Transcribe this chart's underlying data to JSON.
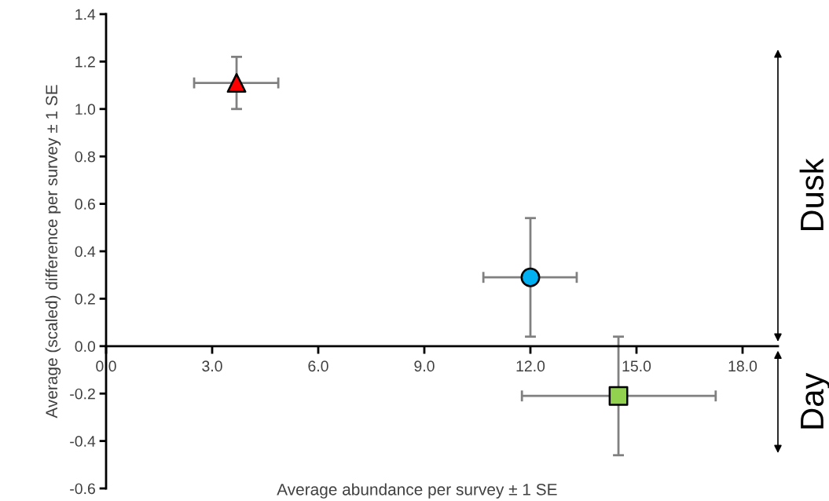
{
  "chart_data": {
    "type": "scatter",
    "xlabel": "Average abundance per survey ± 1 SE",
    "ylabel": "Average (scaled) difference per survey ± 1 SE",
    "series": [
      {
        "x": [
          3.69
        ],
        "values": [
          1.11
        ],
        "color": "#ff0000",
        "marker": "triangle",
        "errors": [
          [
            1.0,
            1.22
          ]
        ],
        "xerrors": [
          [
            2.49,
            4.87
          ]
        ]
      },
      {
        "x": [
          12.0
        ],
        "values": [
          0.29
        ],
        "color": "#00b0f0",
        "marker": "circle",
        "errors": [
          [
            0.04,
            0.54
          ]
        ],
        "xerrors": [
          [
            10.67,
            13.31
          ]
        ]
      },
      {
        "x": [
          14.49
        ],
        "values": [
          -0.21
        ],
        "color": "#92d050",
        "marker": "square",
        "errors": [
          [
            -0.46,
            0.04
          ]
        ],
        "xerrors": [
          [
            11.76,
            17.24
          ]
        ]
      }
    ],
    "xlim": [
      0,
      19.0
    ],
    "ylim": [
      -0.6,
      1.4
    ],
    "xticks": [
      {
        "value": 0,
        "label": "0.0"
      },
      {
        "value": 3,
        "label": "3.0"
      },
      {
        "value": 6,
        "label": "6.0"
      },
      {
        "value": 9,
        "label": "9.0"
      },
      {
        "value": 12,
        "label": "12.0"
      },
      {
        "value": 15,
        "label": "15.0"
      },
      {
        "value": 18,
        "label": "18.0"
      }
    ],
    "yticks": [
      {
        "value": -0.6,
        "label": "-0.6"
      },
      {
        "value": -0.4,
        "label": "-0.4"
      },
      {
        "value": -0.2,
        "label": "-0.2"
      },
      {
        "value": 0,
        "label": "0.0"
      },
      {
        "value": 0.2,
        "label": "0.2"
      },
      {
        "value": 0.4,
        "label": "0.4"
      },
      {
        "value": 0.6,
        "label": "0.6"
      },
      {
        "value": 0.8,
        "label": "0.8"
      },
      {
        "value": 1.0,
        "label": "1.0"
      },
      {
        "value": 1.2,
        "label": "1.2"
      },
      {
        "value": 1.4,
        "label": "1.4"
      }
    ],
    "grid": false,
    "annotations": [
      "Dusk",
      "Day"
    ]
  }
}
